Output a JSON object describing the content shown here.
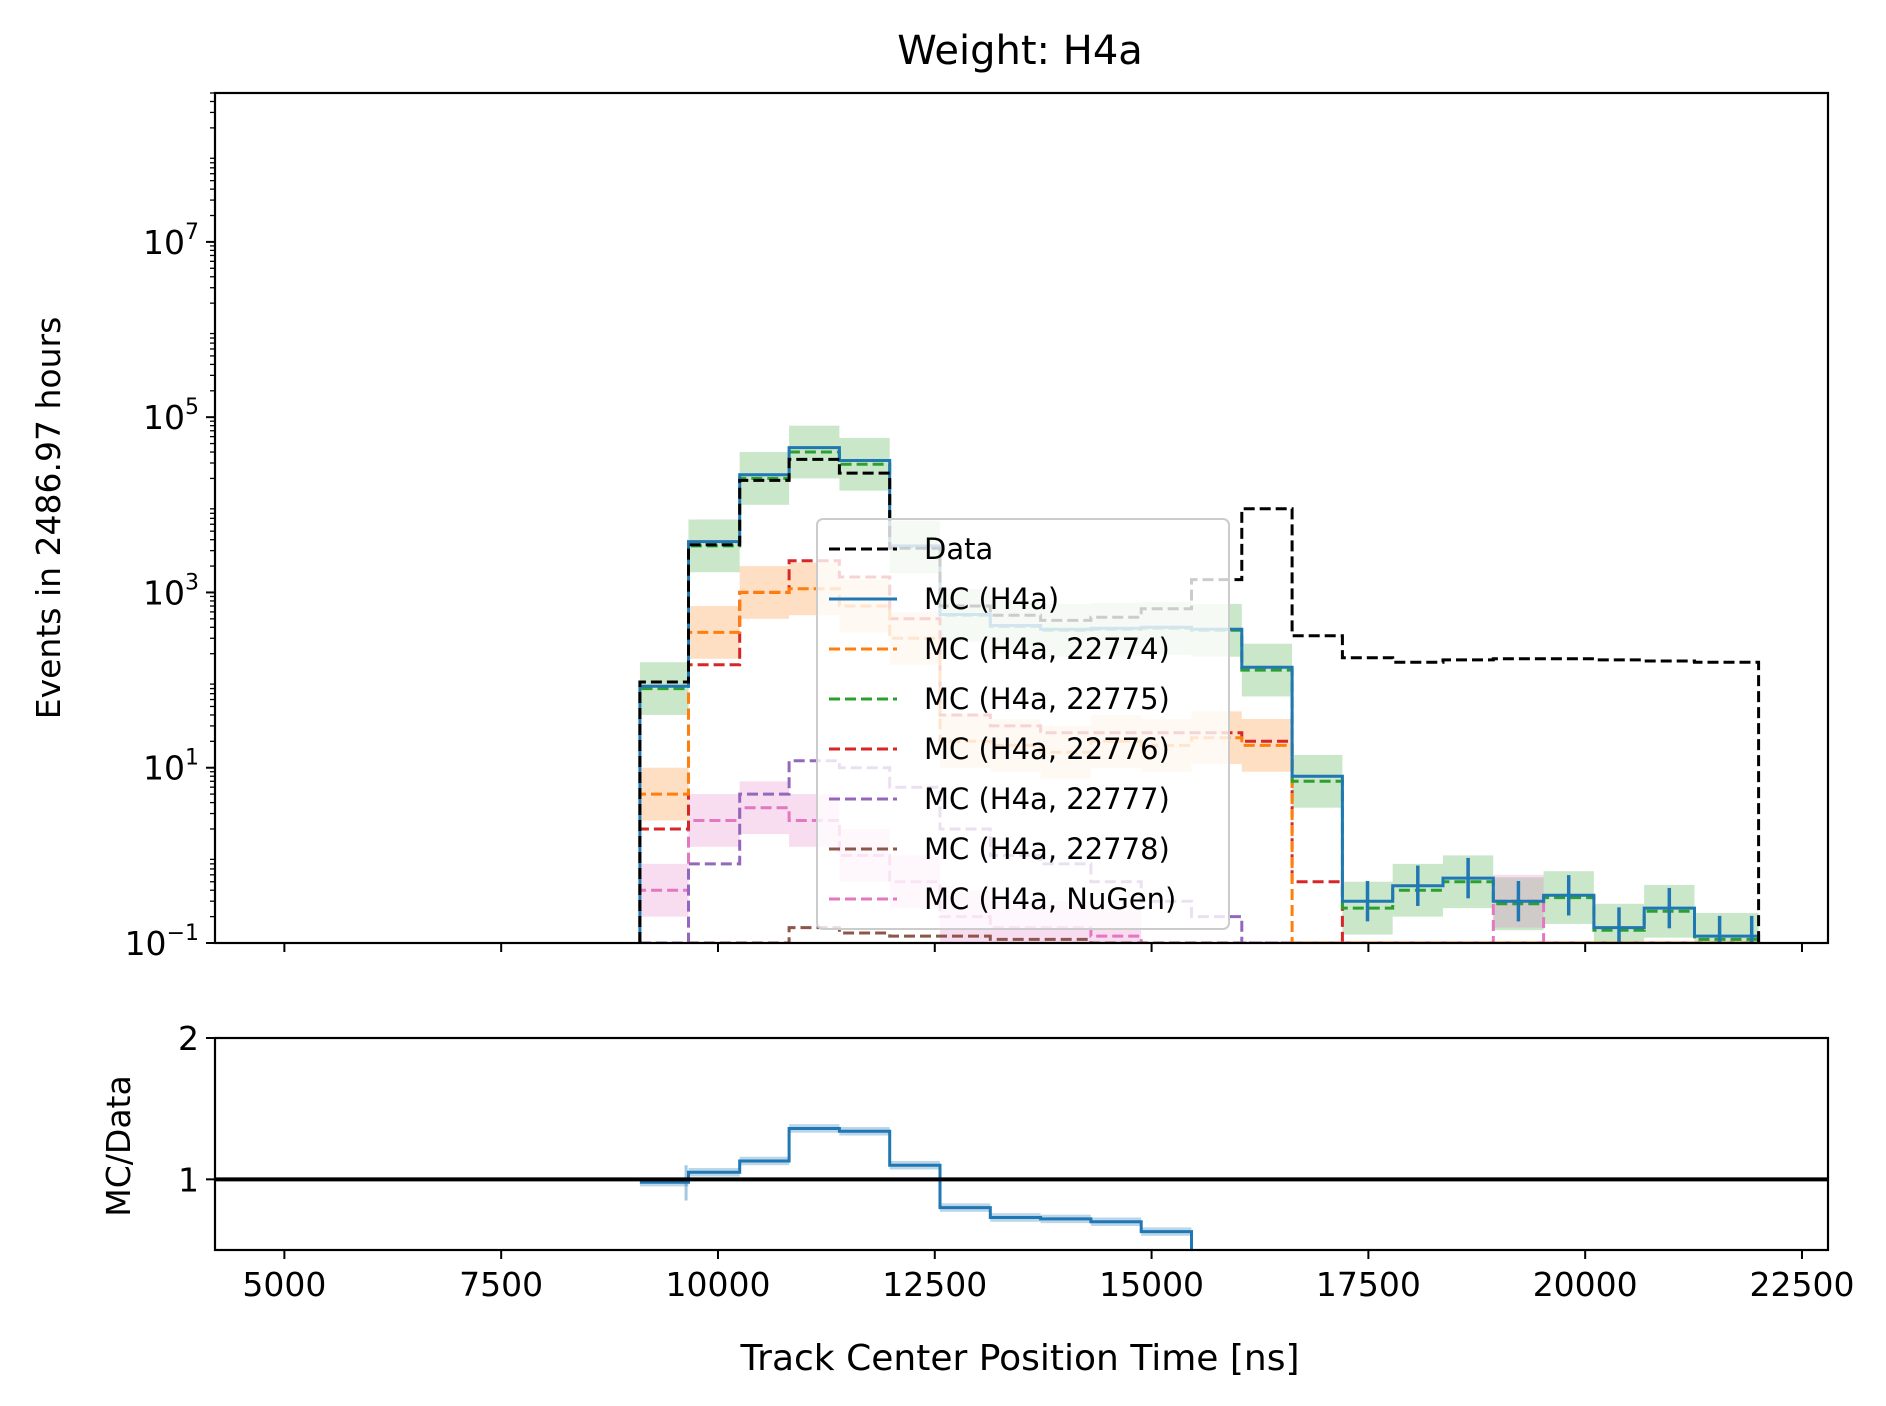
{
  "chart_data": [
    {
      "type": "step",
      "title": "Weight: H4a",
      "xlabel": "",
      "ylabel": "Events in 2486.97 hours",
      "xlim": [
        4200,
        22800
      ],
      "ylim": [
        0.1,
        500000000
      ],
      "yscale": "log",
      "x_ticks": [
        5000,
        7500,
        10000,
        12500,
        15000,
        17500,
        20000,
        22500
      ],
      "y_ticks": [
        {
          "value": 0.1,
          "base": "10",
          "exp": "−1"
        },
        {
          "value": 10,
          "base": "10",
          "exp": "1"
        },
        {
          "value": 1000,
          "base": "10",
          "exp": "3"
        },
        {
          "value": 100000,
          "base": "10",
          "exp": "5"
        },
        {
          "value": 10000000,
          "base": "10",
          "exp": "7"
        }
      ],
      "legend_position": "center",
      "bin_edges": [
        9100,
        9660,
        10250,
        10820,
        11400,
        11980,
        12560,
        13140,
        13720,
        14300,
        14880,
        15460,
        16040,
        16620,
        17200,
        17780,
        18360,
        18940,
        19520,
        20100,
        20680,
        21260,
        21840,
        22000
      ],
      "series": [
        {
          "name": "Data",
          "color": "#000000",
          "style": "dashed",
          "values": [
            95,
            3500,
            19000,
            33000,
            23000,
            3200,
            700,
            550,
            480,
            520,
            650,
            1400,
            9000,
            320,
            180,
            160,
            170,
            175,
            175,
            170,
            165,
            160,
            160
          ]
        },
        {
          "name": "MC (H4a)",
          "color": "#1f77b4",
          "style": "solid",
          "values": [
            85,
            3800,
            22000,
            45000,
            32000,
            3400,
            560,
            420,
            380,
            390,
            400,
            380,
            140,
            8,
            0.3,
            0.45,
            0.55,
            0.3,
            0.35,
            0.15,
            0.25,
            0.12,
            0.12
          ]
        },
        {
          "name": "MC (H4a, 22774)",
          "color": "#ff7f0e",
          "style": "dashed",
          "values": [
            5,
            350,
            1000,
            1100,
            700,
            300,
            20,
            18,
            15,
            20,
            18,
            22,
            18,
            0.1,
            0.1,
            0.1,
            0.1,
            0.1,
            0.1,
            0.1,
            0.1,
            0.1,
            0.1
          ]
        },
        {
          "name": "MC (H4a, 22775)",
          "color": "#2ca02c",
          "style": "dashed",
          "values": [
            80,
            3400,
            20000,
            40000,
            29000,
            3300,
            550,
            410,
            370,
            380,
            390,
            370,
            130,
            7,
            0.25,
            0.4,
            0.5,
            0.28,
            0.33,
            0.14,
            0.23,
            0.11,
            0.11
          ]
        },
        {
          "name": "MC (H4a, 22776)",
          "color": "#d62728",
          "style": "dashed",
          "values": [
            2,
            150,
            1000,
            2300,
            1500,
            500,
            40,
            30,
            25,
            25,
            25,
            25,
            20,
            0.5,
            0.1,
            0.1,
            0.1,
            0.1,
            0.1,
            0.1,
            0.1,
            0.1,
            0.1
          ]
        },
        {
          "name": "MC (H4a, 22777)",
          "color": "#9467bd",
          "style": "dashed",
          "values": [
            0.1,
            0.8,
            5,
            12,
            10,
            6,
            2,
            1,
            0.8,
            0.5,
            0.3,
            0.2,
            0.1,
            0.1,
            0.1,
            0.1,
            0.1,
            0.1,
            0.1,
            0.1,
            0.1,
            0.1,
            0.1
          ]
        },
        {
          "name": "MC (H4a, 22778)",
          "color": "#8c564b",
          "style": "dashed",
          "values": [
            0.1,
            0.1,
            0.1,
            0.15,
            0.13,
            0.12,
            0.12,
            0.11,
            0.11,
            0.1,
            0.1,
            0.1,
            0.1,
            0.1,
            0.1,
            0.1,
            0.1,
            0.1,
            0.1,
            0.1,
            0.1,
            0.1,
            0.1
          ]
        },
        {
          "name": "MC (H4a, NuGen)",
          "color": "#e377c2",
          "style": "dashed",
          "values": [
            0.4,
            2.5,
            3.5,
            2.5,
            1,
            0.5,
            0.2,
            0.15,
            0.15,
            0.12,
            0.1,
            0.1,
            0.1,
            0.1,
            0.1,
            0.1,
            0.1,
            0.3,
            0.1,
            0.1,
            0.1,
            0.1,
            0.1
          ]
        }
      ]
    },
    {
      "type": "step",
      "title": "",
      "xlabel": "Track Center Position Time [ns]",
      "ylabel": "MC/Data",
      "xlim": [
        4200,
        22800
      ],
      "ylim": [
        0.5,
        2
      ],
      "x_ticks": [
        5000,
        7500,
        10000,
        12500,
        15000,
        17500,
        20000,
        22500
      ],
      "y_ticks": [
        1,
        2
      ],
      "reference_line": 1,
      "bin_edges": [
        9100,
        9660,
        10250,
        10820,
        11400,
        11980,
        12560,
        13140,
        13720,
        14300,
        14880,
        15460
      ],
      "series": [
        {
          "color": "#1f77b4",
          "values": [
            0.98,
            1.05,
            1.13,
            1.36,
            1.34,
            1.1,
            0.8,
            0.73,
            0.72,
            0.7,
            0.63
          ]
        }
      ]
    }
  ]
}
